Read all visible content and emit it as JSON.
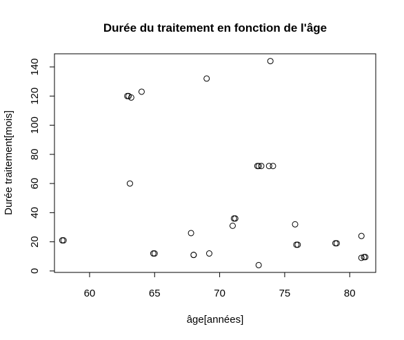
{
  "chart_data": {
    "type": "scatter",
    "title": "Durée du traitement en fonction de l'âge",
    "xlabel": "âge[années]",
    "ylabel": "Durée traitement[mois]",
    "xlim": [
      57.3,
      82.0
    ],
    "ylim": [
      -1.0,
      149.0
    ],
    "xticks": [
      60,
      65,
      70,
      75,
      80
    ],
    "yticks": [
      0,
      20,
      40,
      60,
      80,
      100,
      120,
      140
    ],
    "grid": false,
    "legend": "none",
    "points": [
      {
        "x": 57.9,
        "y": 21
      },
      {
        "x": 58.0,
        "y": 21
      },
      {
        "x": 62.9,
        "y": 120
      },
      {
        "x": 63.0,
        "y": 120
      },
      {
        "x": 63.2,
        "y": 119
      },
      {
        "x": 63.1,
        "y": 60
      },
      {
        "x": 64.0,
        "y": 123
      },
      {
        "x": 64.9,
        "y": 12
      },
      {
        "x": 65.0,
        "y": 12
      },
      {
        "x": 67.8,
        "y": 26
      },
      {
        "x": 68.0,
        "y": 11
      },
      {
        "x": 68.0,
        "y": 11
      },
      {
        "x": 69.0,
        "y": 132
      },
      {
        "x": 69.2,
        "y": 12
      },
      {
        "x": 71.0,
        "y": 31
      },
      {
        "x": 71.1,
        "y": 36
      },
      {
        "x": 71.2,
        "y": 36
      },
      {
        "x": 72.9,
        "y": 72
      },
      {
        "x": 73.0,
        "y": 72
      },
      {
        "x": 73.2,
        "y": 72
      },
      {
        "x": 73.0,
        "y": 4
      },
      {
        "x": 73.8,
        "y": 72
      },
      {
        "x": 74.1,
        "y": 72
      },
      {
        "x": 73.9,
        "y": 144
      },
      {
        "x": 75.8,
        "y": 32
      },
      {
        "x": 75.9,
        "y": 18
      },
      {
        "x": 76.0,
        "y": 18
      },
      {
        "x": 78.9,
        "y": 19
      },
      {
        "x": 79.0,
        "y": 19
      },
      {
        "x": 80.9,
        "y": 24
      },
      {
        "x": 80.9,
        "y": 9
      },
      {
        "x": 81.1,
        "y": 9.5
      },
      {
        "x": 81.2,
        "y": 9.5
      }
    ]
  }
}
